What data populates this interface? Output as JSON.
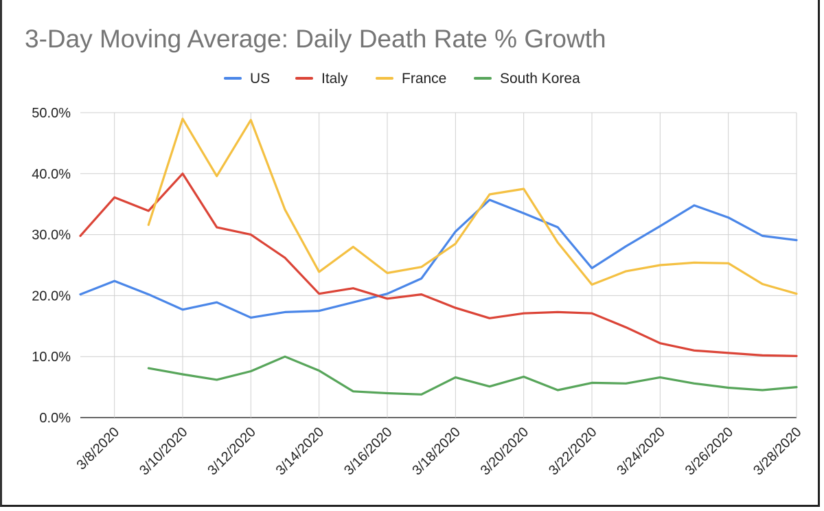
{
  "chart_data": {
    "type": "line",
    "title": "3-Day Moving Average: Daily Death Rate % Growth",
    "xlabel": "",
    "ylabel": "",
    "ylim": [
      0,
      50
    ],
    "legend_position": "top-center",
    "grid": true,
    "x": [
      "3/7/2020",
      "3/8/2020",
      "3/9/2020",
      "3/10/2020",
      "3/11/2020",
      "3/12/2020",
      "3/13/2020",
      "3/14/2020",
      "3/15/2020",
      "3/16/2020",
      "3/17/2020",
      "3/18/2020",
      "3/19/2020",
      "3/20/2020",
      "3/21/2020",
      "3/22/2020",
      "3/23/2020",
      "3/24/2020",
      "3/25/2020",
      "3/26/2020",
      "3/27/2020",
      "3/28/2020"
    ],
    "x_tick_labels": [
      "3/8/2020",
      "3/10/2020",
      "3/12/2020",
      "3/14/2020",
      "3/16/2020",
      "3/18/2020",
      "3/20/2020",
      "3/22/2020",
      "3/24/2020",
      "3/26/2020",
      "3/28/2020"
    ],
    "y_ticks": [
      "0.0%",
      "10.0%",
      "20.0%",
      "30.0%",
      "40.0%",
      "50.0%"
    ],
    "series": [
      {
        "name": "US",
        "color": "#4a86e8",
        "values": [
          20.2,
          22.4,
          20.2,
          17.7,
          18.9,
          16.4,
          17.3,
          17.5,
          18.9,
          20.3,
          22.8,
          30.5,
          35.7,
          33.5,
          31.2,
          24.5,
          28.1,
          31.4,
          34.8,
          32.8,
          29.8,
          29.1
        ]
      },
      {
        "name": "Italy",
        "color": "#db4437",
        "values": [
          29.8,
          36.1,
          33.9,
          40.0,
          31.2,
          30.0,
          26.2,
          20.3,
          21.2,
          19.5,
          20.2,
          18.0,
          16.3,
          17.1,
          17.3,
          17.1,
          14.8,
          12.2,
          11.0,
          10.6,
          10.2,
          10.1
        ]
      },
      {
        "name": "France",
        "color": "#f4c042",
        "values": [
          null,
          null,
          31.6,
          49.0,
          39.6,
          48.8,
          34.1,
          23.9,
          28.0,
          23.7,
          24.7,
          28.5,
          36.6,
          37.5,
          28.7,
          21.8,
          24.0,
          25.0,
          25.4,
          25.3,
          21.9,
          20.3
        ]
      },
      {
        "name": "South Korea",
        "color": "#57a55a",
        "values": [
          null,
          null,
          8.1,
          7.1,
          6.2,
          7.6,
          10.0,
          7.7,
          4.3,
          4.0,
          3.8,
          6.6,
          5.1,
          6.7,
          4.5,
          5.7,
          5.6,
          6.6,
          5.6,
          4.9,
          4.5,
          5.0
        ]
      }
    ]
  }
}
